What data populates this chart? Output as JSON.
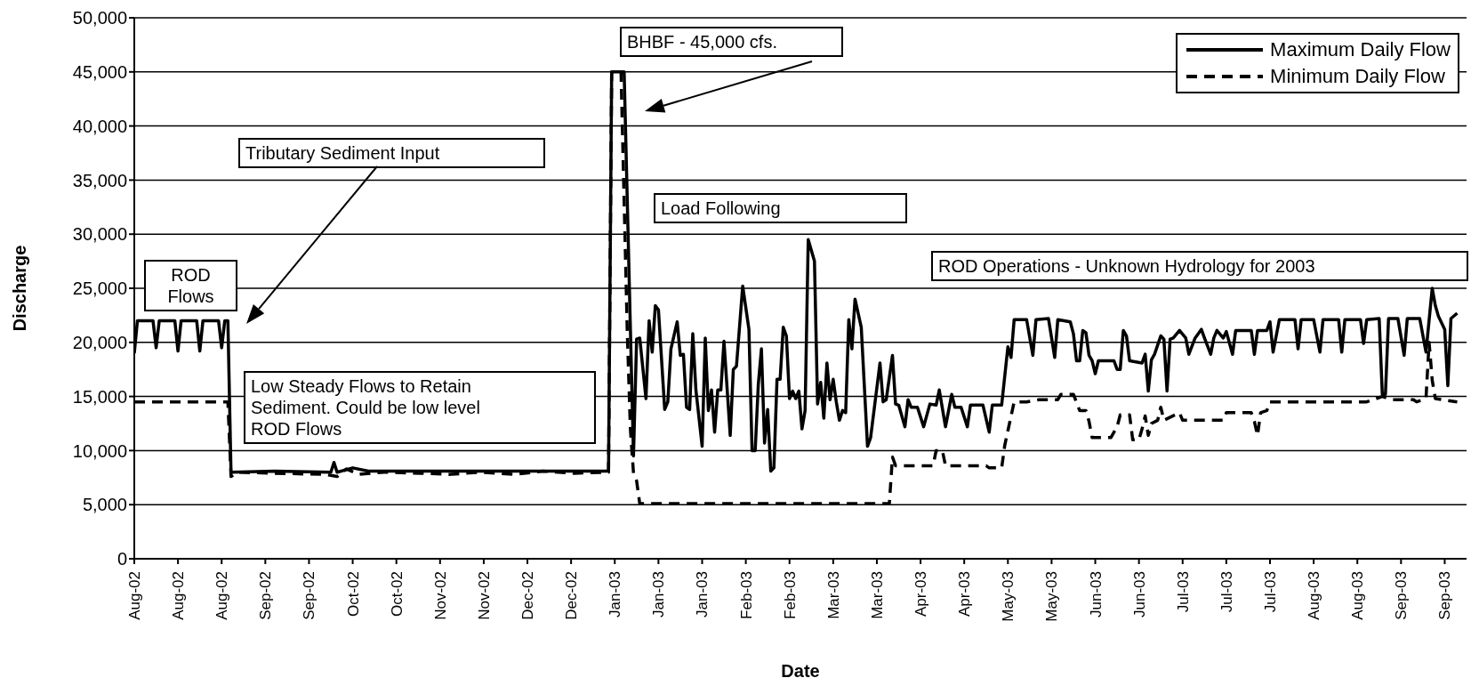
{
  "chart_data": {
    "type": "line",
    "xlabel": "Date",
    "ylabel": "Discharge",
    "xlim": [
      "2002-08-01",
      "2003-10-02"
    ],
    "xticks": [
      {
        "value": "2002-08-01",
        "label": "Aug-02"
      },
      {
        "value": "2002-08-15",
        "label": "Aug-02"
      },
      {
        "value": "2002-08-29",
        "label": "Aug-02"
      },
      {
        "value": "2002-09-12",
        "label": "Sep-02"
      },
      {
        "value": "2002-09-26",
        "label": "Sep-02"
      },
      {
        "value": "2002-10-10",
        "label": "Oct-02"
      },
      {
        "value": "2002-10-24",
        "label": "Oct-02"
      },
      {
        "value": "2002-11-07",
        "label": "Nov-02"
      },
      {
        "value": "2002-11-21",
        "label": "Nov-02"
      },
      {
        "value": "2002-12-05",
        "label": "Dec-02"
      },
      {
        "value": "2002-12-19",
        "label": "Dec-02"
      },
      {
        "value": "2003-01-02",
        "label": "Jan-03"
      },
      {
        "value": "2003-01-16",
        "label": "Jan-03"
      },
      {
        "value": "2003-01-30",
        "label": "Jan-03"
      },
      {
        "value": "2003-02-13",
        "label": "Feb-03"
      },
      {
        "value": "2003-02-27",
        "label": "Feb-03"
      },
      {
        "value": "2003-03-13",
        "label": "Mar-03"
      },
      {
        "value": "2003-03-27",
        "label": "Mar-03"
      },
      {
        "value": "2003-04-10",
        "label": "Apr-03"
      },
      {
        "value": "2003-04-24",
        "label": "Apr-03"
      },
      {
        "value": "2003-05-08",
        "label": "May-03"
      },
      {
        "value": "2003-05-22",
        "label": "May-03"
      },
      {
        "value": "2003-06-05",
        "label": "Jun-03"
      },
      {
        "value": "2003-06-19",
        "label": "Jun-03"
      },
      {
        "value": "2003-07-03",
        "label": "Jul-03"
      },
      {
        "value": "2003-07-17",
        "label": "Jul-03"
      },
      {
        "value": "2003-07-31",
        "label": "Jul-03"
      },
      {
        "value": "2003-08-14",
        "label": "Aug-03"
      },
      {
        "value": "2003-08-28",
        "label": "Aug-03"
      },
      {
        "value": "2003-09-11",
        "label": "Sep-03"
      },
      {
        "value": "2003-09-25",
        "label": "Sep-03"
      }
    ],
    "ylim": [
      0,
      50000
    ],
    "yticks": [
      {
        "value": 0,
        "label": "0"
      },
      {
        "value": 5000,
        "label": "5,000"
      },
      {
        "value": 10000,
        "label": "10,000"
      },
      {
        "value": 15000,
        "label": "15,000"
      },
      {
        "value": 20000,
        "label": "20,000"
      },
      {
        "value": 25000,
        "label": "25,000"
      },
      {
        "value": 30000,
        "label": "30,000"
      },
      {
        "value": 35000,
        "label": "35,000"
      },
      {
        "value": 40000,
        "label": "40,000"
      },
      {
        "value": 45000,
        "label": "45,000"
      },
      {
        "value": 50000,
        "label": "50,000"
      }
    ],
    "grid": "y",
    "legend": "top right",
    "marker": "none",
    "series": [
      {
        "name": "Maximum Daily Flow",
        "color": "#000000",
        "line_style": "solid",
        "x": [
          "2002-08-01",
          "2002-08-02",
          "2002-08-07",
          "2002-08-08",
          "2002-08-09",
          "2002-08-14",
          "2002-08-15",
          "2002-08-16",
          "2002-08-21",
          "2002-08-22",
          "2002-08-23",
          "2002-08-28",
          "2002-08-29",
          "2002-08-30",
          "2002-08-31",
          "2002-09-01",
          "2002-09-15",
          "2002-10-03",
          "2002-10-04",
          "2002-10-05",
          "2002-10-10",
          "2002-10-15",
          "2002-11-15",
          "2002-12-15",
          "2002-12-31",
          "2003-01-01",
          "2003-01-05",
          "2003-01-08",
          "2003-01-09",
          "2003-01-10",
          "2003-01-12",
          "2003-01-13",
          "2003-01-14",
          "2003-01-15",
          "2003-01-16",
          "2003-01-18",
          "2003-01-19",
          "2003-01-20",
          "2003-01-22",
          "2003-01-23",
          "2003-01-24",
          "2003-01-25",
          "2003-01-26",
          "2003-01-27",
          "2003-01-28",
          "2003-01-30",
          "2003-01-31",
          "2003-02-01",
          "2003-02-02",
          "2003-02-03",
          "2003-02-04",
          "2003-02-05",
          "2003-02-06",
          "2003-02-08",
          "2003-02-09",
          "2003-02-10",
          "2003-02-12",
          "2003-02-14",
          "2003-02-15",
          "2003-02-16",
          "2003-02-17",
          "2003-02-18",
          "2003-02-19",
          "2003-02-20",
          "2003-02-21",
          "2003-02-22",
          "2003-02-23",
          "2003-02-24",
          "2003-02-25",
          "2003-02-26",
          "2003-02-27",
          "2003-02-28",
          "2003-03-01",
          "2003-03-02",
          "2003-03-03",
          "2003-03-04",
          "2003-03-05",
          "2003-03-07",
          "2003-03-08",
          "2003-03-09",
          "2003-03-10",
          "2003-03-11",
          "2003-03-12",
          "2003-03-13",
          "2003-03-14",
          "2003-03-15",
          "2003-03-16",
          "2003-03-17",
          "2003-03-18",
          "2003-03-19",
          "2003-03-20",
          "2003-03-22",
          "2003-03-24",
          "2003-03-25",
          "2003-03-28",
          "2003-03-29",
          "2003-03-30",
          "2003-04-01",
          "2003-04-02",
          "2003-04-03",
          "2003-04-05",
          "2003-04-06",
          "2003-04-07",
          "2003-04-09",
          "2003-04-11",
          "2003-04-13",
          "2003-04-15",
          "2003-04-16",
          "2003-04-18",
          "2003-04-20",
          "2003-04-21",
          "2003-04-23",
          "2003-04-25",
          "2003-04-26",
          "2003-04-30",
          "2003-05-02",
          "2003-05-03",
          "2003-05-06",
          "2003-05-08",
          "2003-05-09",
          "2003-05-10",
          "2003-05-14",
          "2003-05-16",
          "2003-05-17",
          "2003-05-21",
          "2003-05-23",
          "2003-05-24",
          "2003-05-28",
          "2003-05-29",
          "2003-05-30",
          "2003-05-31",
          "2003-06-01",
          "2003-06-02",
          "2003-06-03",
          "2003-06-04",
          "2003-06-05",
          "2003-06-06",
          "2003-06-11",
          "2003-06-12",
          "2003-06-13",
          "2003-06-14",
          "2003-06-15",
          "2003-06-16",
          "2003-06-20",
          "2003-06-21",
          "2003-06-22",
          "2003-06-23",
          "2003-06-24",
          "2003-06-26",
          "2003-06-27",
          "2003-06-28",
          "2003-06-29",
          "2003-06-30",
          "2003-07-02",
          "2003-07-04",
          "2003-07-05",
          "2003-07-07",
          "2003-07-09",
          "2003-07-10",
          "2003-07-12",
          "2003-07-13",
          "2003-07-14",
          "2003-07-16",
          "2003-07-17",
          "2003-07-19",
          "2003-07-20",
          "2003-07-25",
          "2003-07-26",
          "2003-07-27",
          "2003-07-30",
          "2003-07-31",
          "2003-08-01",
          "2003-08-03",
          "2003-08-08",
          "2003-08-09",
          "2003-08-10",
          "2003-08-14",
          "2003-08-16",
          "2003-08-17",
          "2003-08-22",
          "2003-08-23",
          "2003-08-24",
          "2003-08-29",
          "2003-08-30",
          "2003-08-31",
          "2003-09-04",
          "2003-09-05",
          "2003-09-06",
          "2003-09-07",
          "2003-09-10",
          "2003-09-12",
          "2003-09-13",
          "2003-09-17",
          "2003-09-19",
          "2003-09-21",
          "2003-09-22",
          "2003-09-23",
          "2003-09-25",
          "2003-09-26",
          "2003-09-27",
          "2003-09-29"
        ],
        "values": [
          19000,
          22000,
          22000,
          19500,
          22000,
          22000,
          19200,
          22000,
          22000,
          19200,
          22000,
          22000,
          19500,
          22000,
          22000,
          8000,
          8100,
          8000,
          8900,
          8000,
          8400,
          8100,
          8100,
          8100,
          8100,
          45000,
          45000,
          9500,
          20300,
          20400,
          14800,
          22000,
          19100,
          23400,
          23000,
          13800,
          14500,
          19400,
          21900,
          18800,
          18900,
          14000,
          13800,
          20800,
          15600,
          10400,
          20400,
          13700,
          15600,
          11700,
          15600,
          15600,
          20100,
          11400,
          17500,
          17800,
          25200,
          21200,
          10000,
          10000,
          16100,
          19400,
          10700,
          13800,
          8100,
          8400,
          16600,
          16600,
          21400,
          20600,
          14800,
          15500,
          14800,
          15500,
          12000,
          13700,
          29500,
          27500,
          14300,
          16300,
          13000,
          18100,
          14700,
          16600,
          14500,
          12800,
          13700,
          13500,
          22100,
          19400,
          24000,
          21400,
          10400,
          11200,
          18100,
          14500,
          14700,
          18800,
          14300,
          14200,
          12200,
          14700,
          14000,
          14000,
          12200,
          14300,
          14200,
          15600,
          12200,
          15200,
          14000,
          14000,
          12200,
          14200,
          14200,
          11700,
          14200,
          14200,
          19600,
          18600,
          22100,
          22100,
          18800,
          22100,
          22200,
          18600,
          22100,
          21900,
          20800,
          18300,
          18300,
          21100,
          20900,
          18800,
          18300,
          17100,
          18300,
          18300,
          17500,
          17500,
          21100,
          20600,
          18300,
          18100,
          18900,
          15500,
          18400,
          18900,
          20600,
          20300,
          15500,
          20300,
          20400,
          21100,
          20400,
          18900,
          20400,
          21200,
          20400,
          18900,
          20400,
          21100,
          20400,
          21000,
          18900,
          21100,
          21100,
          18900,
          21100,
          21100,
          21900,
          19100,
          22100,
          22100,
          19400,
          22100,
          22100,
          19100,
          22100,
          22100,
          19100,
          22100,
          22100,
          19900,
          22100,
          22200,
          15200,
          15200,
          22200,
          22200,
          18800,
          22200,
          22200,
          19100,
          25000,
          23400,
          22400,
          21200,
          16000,
          22200,
          22700
        ]
      },
      {
        "name": "Minimum Daily Flow",
        "color": "#000000",
        "line_style": "dashed",
        "x": [
          "2002-08-01",
          "2002-08-31",
          "2002-09-01",
          "2002-09-03",
          "2002-09-15",
          "2002-10-01",
          "2002-10-05",
          "2002-10-08",
          "2002-10-12",
          "2002-10-20",
          "2002-11-01",
          "2002-11-10",
          "2002-11-20",
          "2002-12-01",
          "2002-12-10",
          "2002-12-20",
          "2002-12-31",
          "2003-01-01",
          "2003-01-04",
          "2003-01-05",
          "2003-01-06",
          "2003-01-07",
          "2003-01-08",
          "2003-01-09",
          "2003-01-10",
          "2003-03-31",
          "2003-04-01",
          "2003-04-02",
          "2003-04-14",
          "2003-04-15",
          "2003-04-17",
          "2003-04-18",
          "2003-05-01",
          "2003-05-02",
          "2003-05-06",
          "2003-05-07",
          "2003-05-10",
          "2003-05-14",
          "2003-05-18",
          "2003-05-24",
          "2003-05-25",
          "2003-05-29",
          "2003-05-31",
          "2003-06-02",
          "2003-06-03",
          "2003-06-04",
          "2003-06-10",
          "2003-06-12",
          "2003-06-13",
          "2003-06-16",
          "2003-06-17",
          "2003-06-19",
          "2003-06-20",
          "2003-06-21",
          "2003-06-22",
          "2003-06-23",
          "2003-06-25",
          "2003-06-26",
          "2003-06-27",
          "2003-07-02",
          "2003-07-03",
          "2003-07-16",
          "2003-07-17",
          "2003-07-25",
          "2003-07-26",
          "2003-07-27",
          "2003-07-28",
          "2003-07-30",
          "2003-07-31",
          "2003-08-31",
          "2003-09-03",
          "2003-09-05",
          "2003-09-08",
          "2003-09-15",
          "2003-09-16",
          "2003-09-19",
          "2003-09-20",
          "2003-09-21",
          "2003-09-22",
          "2003-09-29"
        ],
        "values": [
          14500,
          14500,
          7600,
          8000,
          7900,
          7800,
          7600,
          8300,
          7800,
          8000,
          7900,
          7800,
          8000,
          7800,
          8100,
          7900,
          8000,
          45000,
          45000,
          33000,
          21000,
          12000,
          7900,
          7200,
          5100,
          5100,
          9400,
          8600,
          8600,
          10000,
          10000,
          8600,
          8600,
          8400,
          8400,
          10500,
          14500,
          14500,
          14700,
          14700,
          15200,
          15200,
          13700,
          13700,
          12700,
          11200,
          11200,
          12200,
          13300,
          13300,
          11000,
          11000,
          12000,
          13200,
          11400,
          12500,
          12800,
          14000,
          12800,
          13500,
          12800,
          12800,
          13500,
          13500,
          12700,
          11400,
          13500,
          13700,
          14500,
          14500,
          14800,
          15000,
          14700,
          14700,
          14500,
          14800,
          20000,
          16500,
          14800,
          14500
        ]
      }
    ],
    "annotations": [
      "ROD Flows",
      "Tributary Sediment Input",
      "BHBF - 45,000 cfs.",
      "Low Steady Flows to Retain Sediment. Could be low level ROD Flows",
      "Load Following",
      "ROD Operations - Unknown Hydrology for 2003"
    ]
  }
}
